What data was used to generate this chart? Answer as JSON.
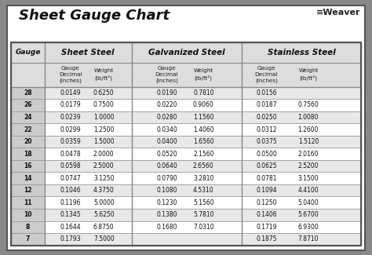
{
  "title": "Sheet Gauge Chart",
  "bg_outer": "#888888",
  "bg_inner": "#ffffff",
  "row_alt1": "#e8e8e8",
  "row_alt2": "#ffffff",
  "gauges": [
    28,
    26,
    24,
    22,
    20,
    18,
    16,
    14,
    12,
    11,
    10,
    8,
    7
  ],
  "sheet_steel": {
    "decimal": [
      "0.0149",
      "0.0179",
      "0.0239",
      "0.0299",
      "0.0359",
      "0.0478",
      "0.0598",
      "0.0747",
      "0.1046",
      "0.1196",
      "0.1345",
      "0.1644",
      "0.1793"
    ],
    "weight": [
      "0.6250",
      "0.7500",
      "1.0000",
      "1.2500",
      "1.5000",
      "2.0000",
      "2.5000",
      "3.1250",
      "4.3750",
      "5.0000",
      "5.6250",
      "6.8750",
      "7.5000"
    ]
  },
  "galvanized_steel": {
    "decimal": [
      "0.0190",
      "0.0220",
      "0.0280",
      "0.0340",
      "0.0400",
      "0.0520",
      "0.0640",
      "0.0790",
      "0.1080",
      "0.1230",
      "0.1380",
      "0.1680",
      ""
    ],
    "weight": [
      "0.7810",
      "0.9060",
      "1.1560",
      "1.4060",
      "1.6560",
      "2.1560",
      "2.6560",
      "3.2810",
      "4.5310",
      "5.1560",
      "5.7810",
      "7.0310",
      ""
    ]
  },
  "stainless_steel": {
    "decimal": [
      "0.0156",
      "0.0187",
      "0.0250",
      "0.0312",
      "0.0375",
      "0.0500",
      "0.0625",
      "0.0781",
      "0.1094",
      "0.1250",
      "0.1406",
      "0.1719",
      "0.1875"
    ],
    "weight": [
      "",
      "0.7560",
      "1.0080",
      "1.2600",
      "1.5120",
      "2.0160",
      "2.5200",
      "3.1500",
      "4.4100",
      "5.0400",
      "5.6700",
      "6.9300",
      "7.8710"
    ]
  }
}
